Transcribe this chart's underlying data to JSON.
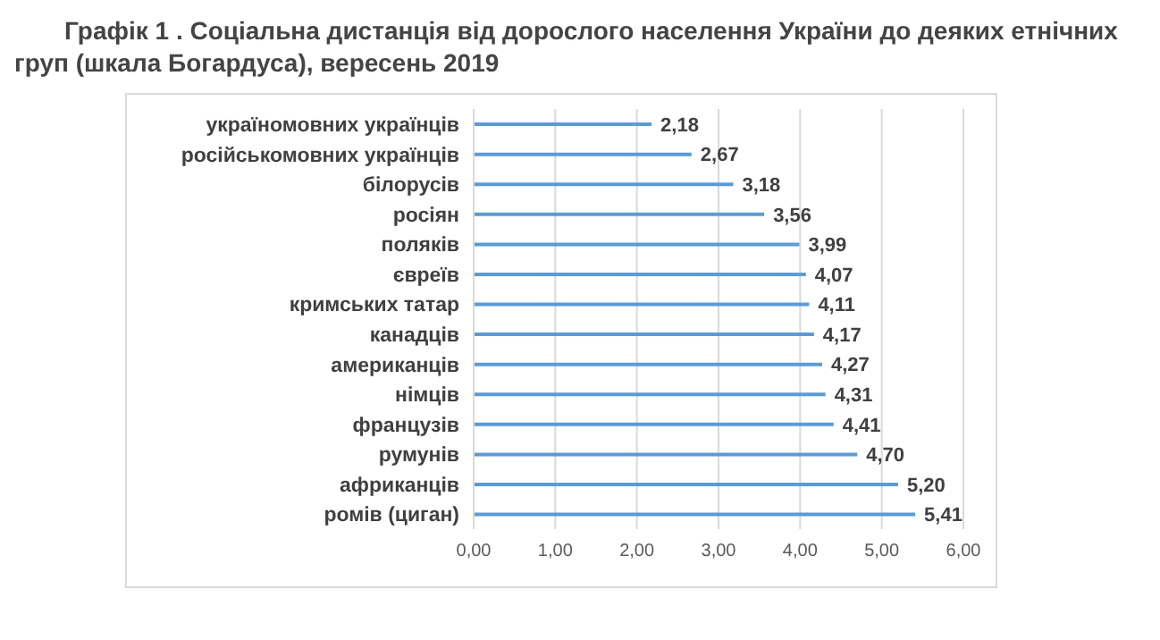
{
  "chart_data": {
    "type": "bar",
    "orientation": "horizontal",
    "title": "Графік 1 . Соціальна дистанція від дорослого населення України до деяких етнічних груп (шкала Богардуса), вересень 2019",
    "categories": [
      "україномовних українців",
      "російськомовних українців",
      "білорусів",
      "росіян",
      "поляків",
      "євреїв",
      "кримських татар",
      "канадців",
      "американців",
      "німців",
      "французів",
      "румунів",
      "африканців",
      "ромів (циган)"
    ],
    "values": [
      2.18,
      2.67,
      3.18,
      3.56,
      3.99,
      4.07,
      4.11,
      4.17,
      4.27,
      4.31,
      4.41,
      4.7,
      5.2,
      5.41
    ],
    "value_labels": [
      "2,18",
      "2,67",
      "3,18",
      "3,56",
      "3,99",
      "4,07",
      "4,11",
      "4,17",
      "4,27",
      "4,31",
      "4,41",
      "4,70",
      "5,20",
      "5,41"
    ],
    "color": "#5b9bd5",
    "xlim": [
      0,
      6
    ],
    "xticks": [
      {
        "value": 0,
        "label": "0,00"
      },
      {
        "value": 1,
        "label": "1,00"
      },
      {
        "value": 2,
        "label": "2,00"
      },
      {
        "value": 3,
        "label": "3,00"
      },
      {
        "value": 4,
        "label": "4,00"
      },
      {
        "value": 5,
        "label": "5,00"
      },
      {
        "value": 6,
        "label": "6,00"
      }
    ],
    "grid": "x"
  }
}
